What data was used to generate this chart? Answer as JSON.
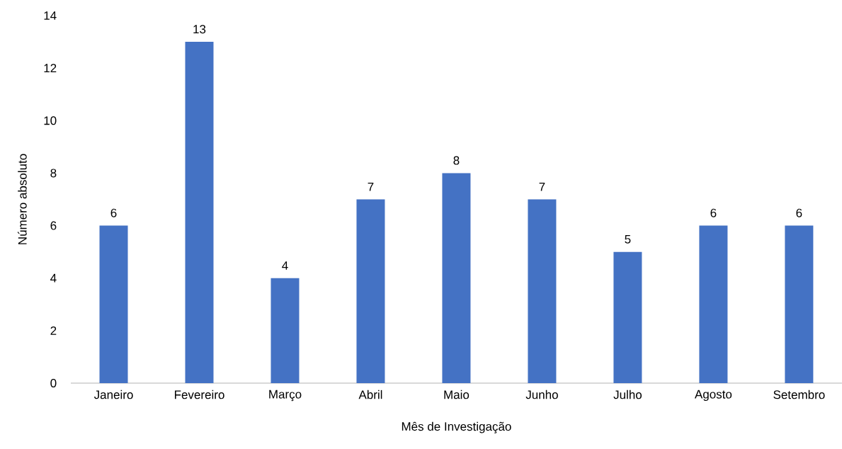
{
  "chart_data": {
    "type": "bar",
    "xlabel": "Mês de Investigação",
    "ylabel": "Número absoluto",
    "categories": [
      "Janeiro",
      "Fevereiro",
      "Março",
      "Abril",
      "Maio",
      "Junho",
      "Julho",
      "Agosto",
      "Setembro"
    ],
    "values": [
      6,
      13,
      4,
      7,
      8,
      7,
      5,
      6,
      6
    ],
    "color": "#4472c4",
    "ylim": [
      0,
      14
    ],
    "yticks": [
      0,
      2,
      4,
      6,
      8,
      10,
      12,
      14
    ],
    "data_labels": true
  }
}
